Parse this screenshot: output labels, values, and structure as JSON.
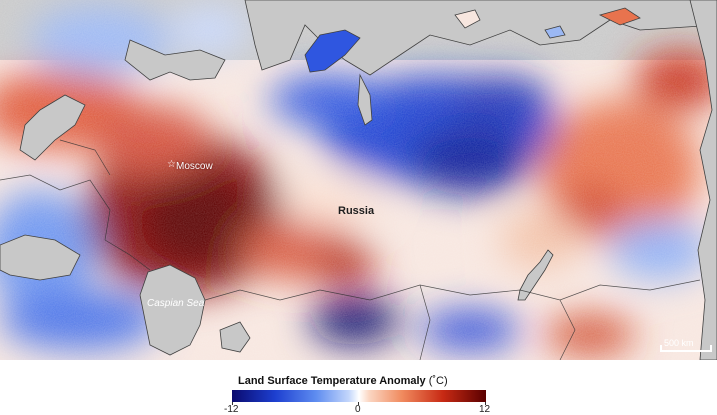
{
  "map": {
    "labels": {
      "city": "Moscow",
      "country": "Russia",
      "sea": "Caspian Sea"
    },
    "scale_bar": "500 km"
  },
  "legend": {
    "title": "Land Surface Temperature Anomaly",
    "unit": "(˚C)",
    "min": "-12",
    "mid": "0",
    "max": "12"
  },
  "colors": {
    "cold": "#0a0a6e",
    "neutral": "#ffffff",
    "warm": "#5a0000",
    "water": "#c8c8c8"
  }
}
